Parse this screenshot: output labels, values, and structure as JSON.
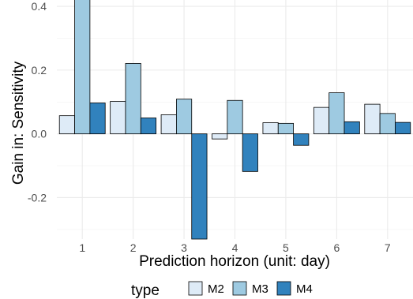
{
  "chart_data": {
    "type": "bar",
    "xlabel": "Prediction horizon (unit: day)",
    "ylabel": "Gain in: Sensitivity",
    "categories": [
      "1",
      "2",
      "3",
      "4",
      "5",
      "6",
      "7"
    ],
    "ylim": [
      -0.33,
      0.42
    ],
    "yticks": [
      -0.2,
      0.0,
      0.2,
      0.4
    ],
    "ytick_labels": [
      "-0.2",
      "0.0",
      "0.2",
      "0.4"
    ],
    "grid": true,
    "legend": {
      "title": "type",
      "position": "bottom"
    },
    "series": [
      {
        "name": "M2",
        "color": "#deebf7",
        "values": [
          0.057,
          0.102,
          0.06,
          -0.016,
          0.035,
          0.083,
          0.093
        ]
      },
      {
        "name": "M3",
        "color": "#9ecae1",
        "values": [
          0.422,
          0.221,
          0.109,
          0.105,
          0.033,
          0.129,
          0.064
        ]
      },
      {
        "name": "M4",
        "color": "#3182bd",
        "values": [
          0.097,
          0.05,
          -0.33,
          -0.118,
          -0.036,
          0.038,
          0.036
        ]
      }
    ]
  }
}
